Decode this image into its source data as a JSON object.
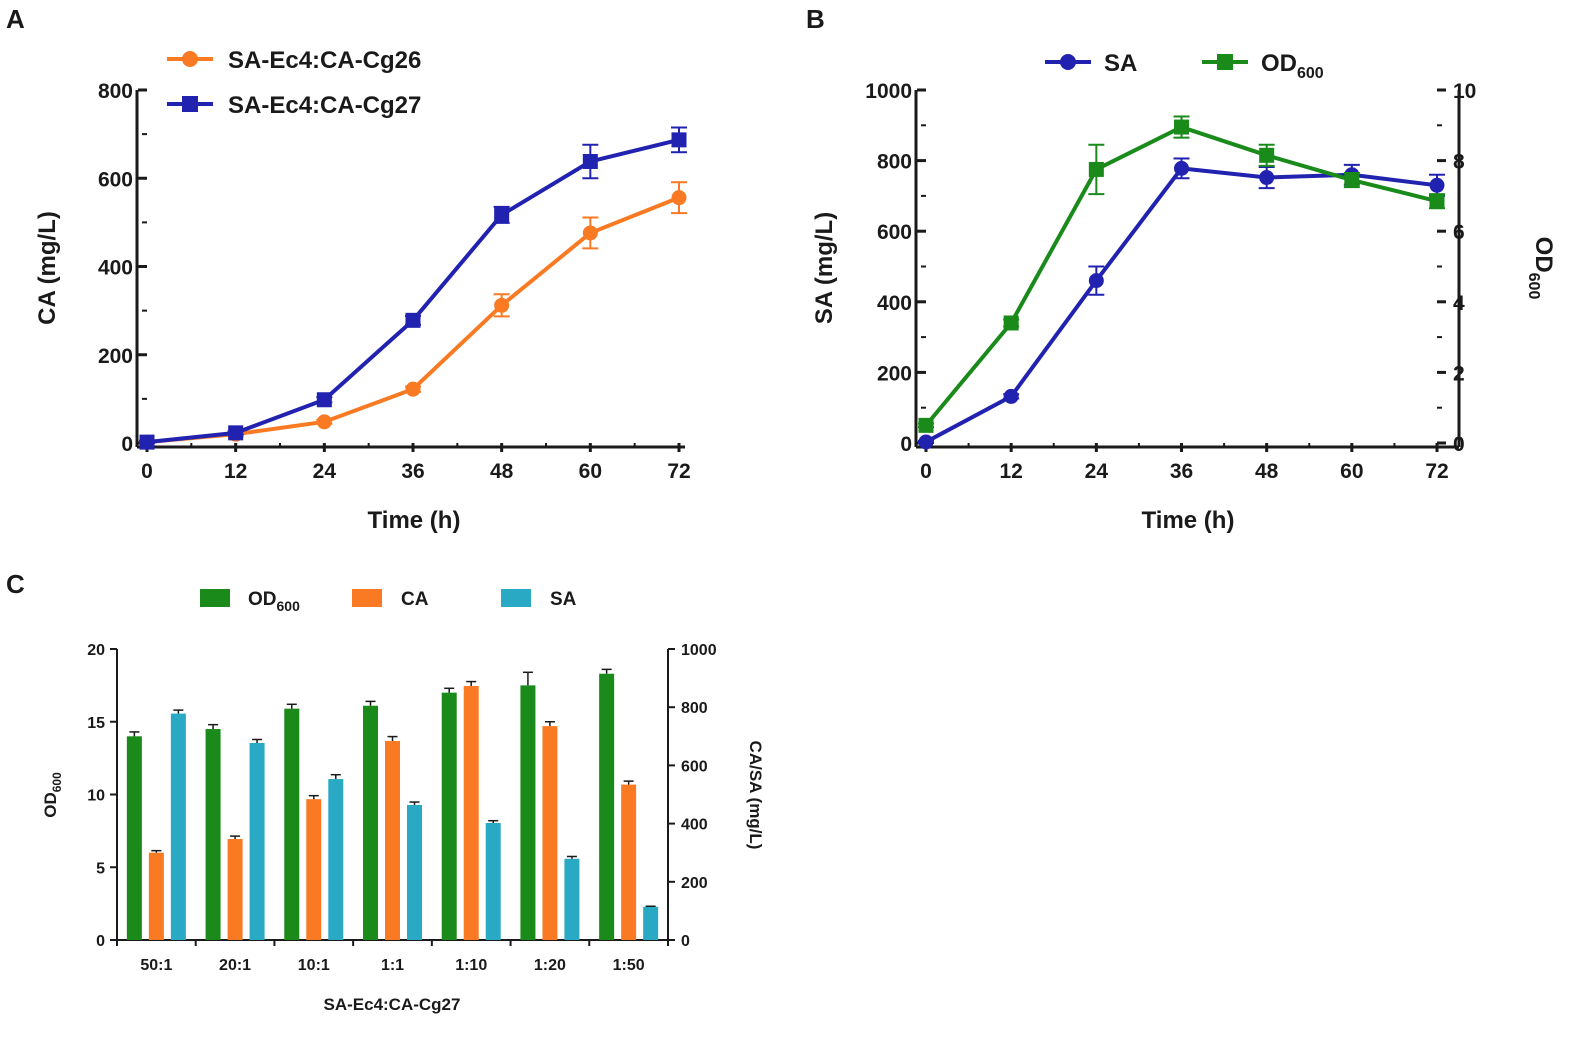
{
  "colors": {
    "orange": "#f97a22",
    "blue": "#2222b0",
    "green": "#1a8a1a",
    "cyan": "#29a9c3",
    "axis": "#1a1a1a"
  },
  "chart_data": [
    {
      "panel": "A",
      "type": "line",
      "x": [
        0,
        12,
        24,
        36,
        48,
        60,
        72
      ],
      "xlabel": "Time (h)",
      "ylabel": "CA (mg/L)",
      "xlim": [
        0,
        72
      ],
      "ylim": [
        0,
        800
      ],
      "xticks": [
        "0",
        "12",
        "24",
        "36",
        "48",
        "60",
        "72"
      ],
      "yticks": [
        "0",
        "200",
        "400",
        "600",
        "800"
      ],
      "legend_position": "top-left",
      "series": [
        {
          "name": "SA-Ec4:CA-Cg26",
          "marker": "circle",
          "color": "#f97a22",
          "values": [
            2,
            20,
            48,
            122,
            312,
            476,
            556
          ],
          "errors": [
            3,
            5,
            4,
            6,
            25,
            35,
            35
          ]
        },
        {
          "name": "SA-Ec4:CA-Cg27",
          "marker": "square",
          "color": "#2222b0",
          "values": [
            2,
            23,
            98,
            278,
            517,
            638,
            687
          ],
          "errors": [
            3,
            4,
            6,
            10,
            18,
            38,
            28
          ]
        }
      ]
    },
    {
      "panel": "B",
      "type": "line",
      "x": [
        0,
        12,
        24,
        36,
        48,
        60,
        72
      ],
      "xlabel": "Time (h)",
      "ylabel": "SA (mg/L)",
      "ylabel_right": "OD",
      "ylabel_right_sub": "600",
      "xlim": [
        0,
        72
      ],
      "ylim": [
        0,
        1000
      ],
      "ylim_right": [
        0,
        10
      ],
      "xticks": [
        "0",
        "12",
        "24",
        "36",
        "48",
        "60",
        "72"
      ],
      "yticks": [
        "0",
        "200",
        "400",
        "600",
        "800",
        "1000"
      ],
      "yticks_right": [
        "0",
        "2",
        "4",
        "6",
        "8",
        "10"
      ],
      "legend_position": "top",
      "series": [
        {
          "name": "SA",
          "axis": "left",
          "marker": "circle",
          "color": "#2222b0",
          "values": [
            3,
            132,
            460,
            778,
            752,
            760,
            730
          ],
          "errors": [
            3,
            6,
            40,
            28,
            30,
            28,
            30
          ]
        },
        {
          "name": "OD",
          "name_sub": "600",
          "axis": "right",
          "marker": "square",
          "color": "#1a8a1a",
          "values": [
            0.5,
            3.4,
            7.75,
            8.95,
            8.15,
            7.45,
            6.85
          ],
          "errors": [
            0.05,
            0.1,
            0.7,
            0.3,
            0.3,
            0.2,
            0.2
          ]
        }
      ]
    },
    {
      "panel": "C",
      "type": "bar",
      "categories": [
        "50:1",
        "20:1",
        "10:1",
        "1:1",
        "1:10",
        "1:20",
        "1:50"
      ],
      "xlabel": "SA-Ec4:CA-Cg27",
      "ylabel": "OD",
      "ylabel_sub": "600",
      "ylabel_right": "CA/SA (mg/L)",
      "ylim": [
        0,
        20
      ],
      "ylim_right": [
        0,
        1000
      ],
      "yticks": [
        "0",
        "5",
        "10",
        "15",
        "20"
      ],
      "yticks_right": [
        "0",
        "200",
        "400",
        "600",
        "800",
        "1000"
      ],
      "legend_position": "top",
      "series": [
        {
          "name": "OD",
          "name_sub": "600",
          "axis": "left",
          "color": "#1a8a1a",
          "values": [
            14.0,
            14.5,
            15.9,
            16.1,
            17.0,
            17.5,
            18.3
          ],
          "errors": [
            0.3,
            0.3,
            0.3,
            0.3,
            0.3,
            0.9,
            0.3
          ]
        },
        {
          "name": "CA",
          "axis": "right",
          "color": "#f97a22",
          "values": [
            300,
            347,
            484,
            684,
            873,
            735,
            534
          ],
          "errors": [
            7,
            10,
            12,
            15,
            15,
            15,
            12
          ]
        },
        {
          "name": "SA",
          "axis": "right",
          "color": "#29a9c3",
          "values": [
            778,
            677,
            553,
            464,
            402,
            279,
            114
          ],
          "errors": [
            12,
            12,
            15,
            10,
            8,
            8,
            2
          ]
        }
      ]
    }
  ]
}
